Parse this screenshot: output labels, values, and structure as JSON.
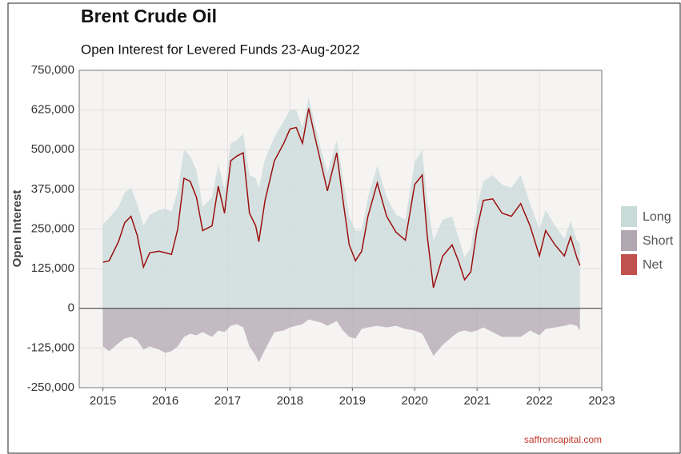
{
  "chart_data": {
    "type": "area-line",
    "title": "Brent Crude Oil",
    "subtitle": "Open Interest for Levered Funds 23-Aug-2022",
    "y_label": "Open Interest",
    "source": "saffroncapital.com",
    "x": [
      2015.0,
      2015.1,
      2015.25,
      2015.35,
      2015.45,
      2015.55,
      2015.65,
      2015.75,
      2015.9,
      2016.0,
      2016.1,
      2016.2,
      2016.3,
      2016.4,
      2016.5,
      2016.6,
      2016.75,
      2016.85,
      2016.95,
      2017.05,
      2017.15,
      2017.25,
      2017.35,
      2017.45,
      2017.5,
      2017.6,
      2017.75,
      2017.9,
      2018.0,
      2018.1,
      2018.2,
      2018.3,
      2018.4,
      2018.5,
      2018.6,
      2018.75,
      2018.85,
      2018.95,
      2019.05,
      2019.15,
      2019.25,
      2019.4,
      2019.55,
      2019.7,
      2019.85,
      2020.0,
      2020.12,
      2020.2,
      2020.3,
      2020.45,
      2020.6,
      2020.7,
      2020.8,
      2020.9,
      2021.0,
      2021.1,
      2021.25,
      2021.4,
      2021.55,
      2021.7,
      2021.85,
      2022.0,
      2022.1,
      2022.25,
      2022.4,
      2022.5,
      2022.6,
      2022.65
    ],
    "series": [
      {
        "name": "Long",
        "color": "#c9dbd9",
        "values": [
          265000,
          285000,
          320000,
          365000,
          380000,
          330000,
          260000,
          295000,
          310000,
          315000,
          305000,
          370000,
          500000,
          480000,
          435000,
          320000,
          350000,
          455000,
          375000,
          520000,
          530000,
          550000,
          420000,
          410000,
          380000,
          470000,
          540000,
          590000,
          625000,
          625000,
          570000,
          665000,
          580000,
          500000,
          425000,
          530000,
          410000,
          290000,
          245000,
          245000,
          350000,
          450000,
          350000,
          295000,
          280000,
          460000,
          500000,
          340000,
          215000,
          280000,
          290000,
          225000,
          160000,
          190000,
          320000,
          400000,
          420000,
          390000,
          380000,
          420000,
          330000,
          250000,
          310000,
          260000,
          220000,
          275000,
          215000,
          205000
        ]
      },
      {
        "name": "Short",
        "color": "#b1a7b1",
        "values": [
          -120000,
          -135000,
          -110000,
          -95000,
          -90000,
          -100000,
          -130000,
          -120000,
          -130000,
          -140000,
          -135000,
          -120000,
          -90000,
          -80000,
          -85000,
          -75000,
          -90000,
          -70000,
          -75000,
          -55000,
          -50000,
          -60000,
          -120000,
          -150000,
          -170000,
          -130000,
          -75000,
          -70000,
          -60000,
          -55000,
          -50000,
          -35000,
          -40000,
          -45000,
          -55000,
          -40000,
          -70000,
          -90000,
          -95000,
          -65000,
          -60000,
          -55000,
          -60000,
          -55000,
          -65000,
          -70000,
          -80000,
          -110000,
          -150000,
          -115000,
          -90000,
          -75000,
          -70000,
          -75000,
          -70000,
          -60000,
          -75000,
          -90000,
          -90000,
          -90000,
          -70000,
          -85000,
          -65000,
          -60000,
          -55000,
          -50000,
          -55000,
          -70000
        ]
      },
      {
        "name": "Net",
        "color": "#c1514e",
        "values": [
          145000,
          150000,
          210000,
          270000,
          290000,
          230000,
          130000,
          175000,
          180000,
          175000,
          170000,
          250000,
          410000,
          400000,
          350000,
          245000,
          260000,
          385000,
          300000,
          465000,
          480000,
          490000,
          300000,
          260000,
          210000,
          340000,
          465000,
          520000,
          565000,
          570000,
          520000,
          630000,
          540000,
          455000,
          370000,
          490000,
          340000,
          200000,
          150000,
          180000,
          290000,
          395000,
          290000,
          240000,
          215000,
          390000,
          420000,
          230000,
          65000,
          165000,
          200000,
          150000,
          90000,
          115000,
          250000,
          340000,
          345000,
          300000,
          290000,
          330000,
          260000,
          165000,
          245000,
          200000,
          165000,
          225000,
          160000,
          135000
        ]
      }
    ],
    "line_color": "#9b0f0f",
    "xlim": [
      2014.62,
      2023.0
    ],
    "xticks": [
      2015,
      2016,
      2017,
      2018,
      2019,
      2020,
      2021,
      2022,
      2023
    ],
    "ylim": [
      -250000,
      750000
    ],
    "yticks": [
      {
        "value": -250000,
        "label": "-250,000"
      },
      {
        "value": -125000,
        "label": "-125,000"
      },
      {
        "value": 0,
        "label": "0"
      },
      {
        "value": 125000,
        "label": "125,000"
      },
      {
        "value": 250000,
        "label": "250,000"
      },
      {
        "value": 375000,
        "label": "375,000"
      },
      {
        "value": 500000,
        "label": "500,000"
      },
      {
        "value": 625000,
        "label": "625,000"
      },
      {
        "value": 750000,
        "label": "750,000"
      }
    ],
    "grid": true,
    "legend": "right"
  }
}
